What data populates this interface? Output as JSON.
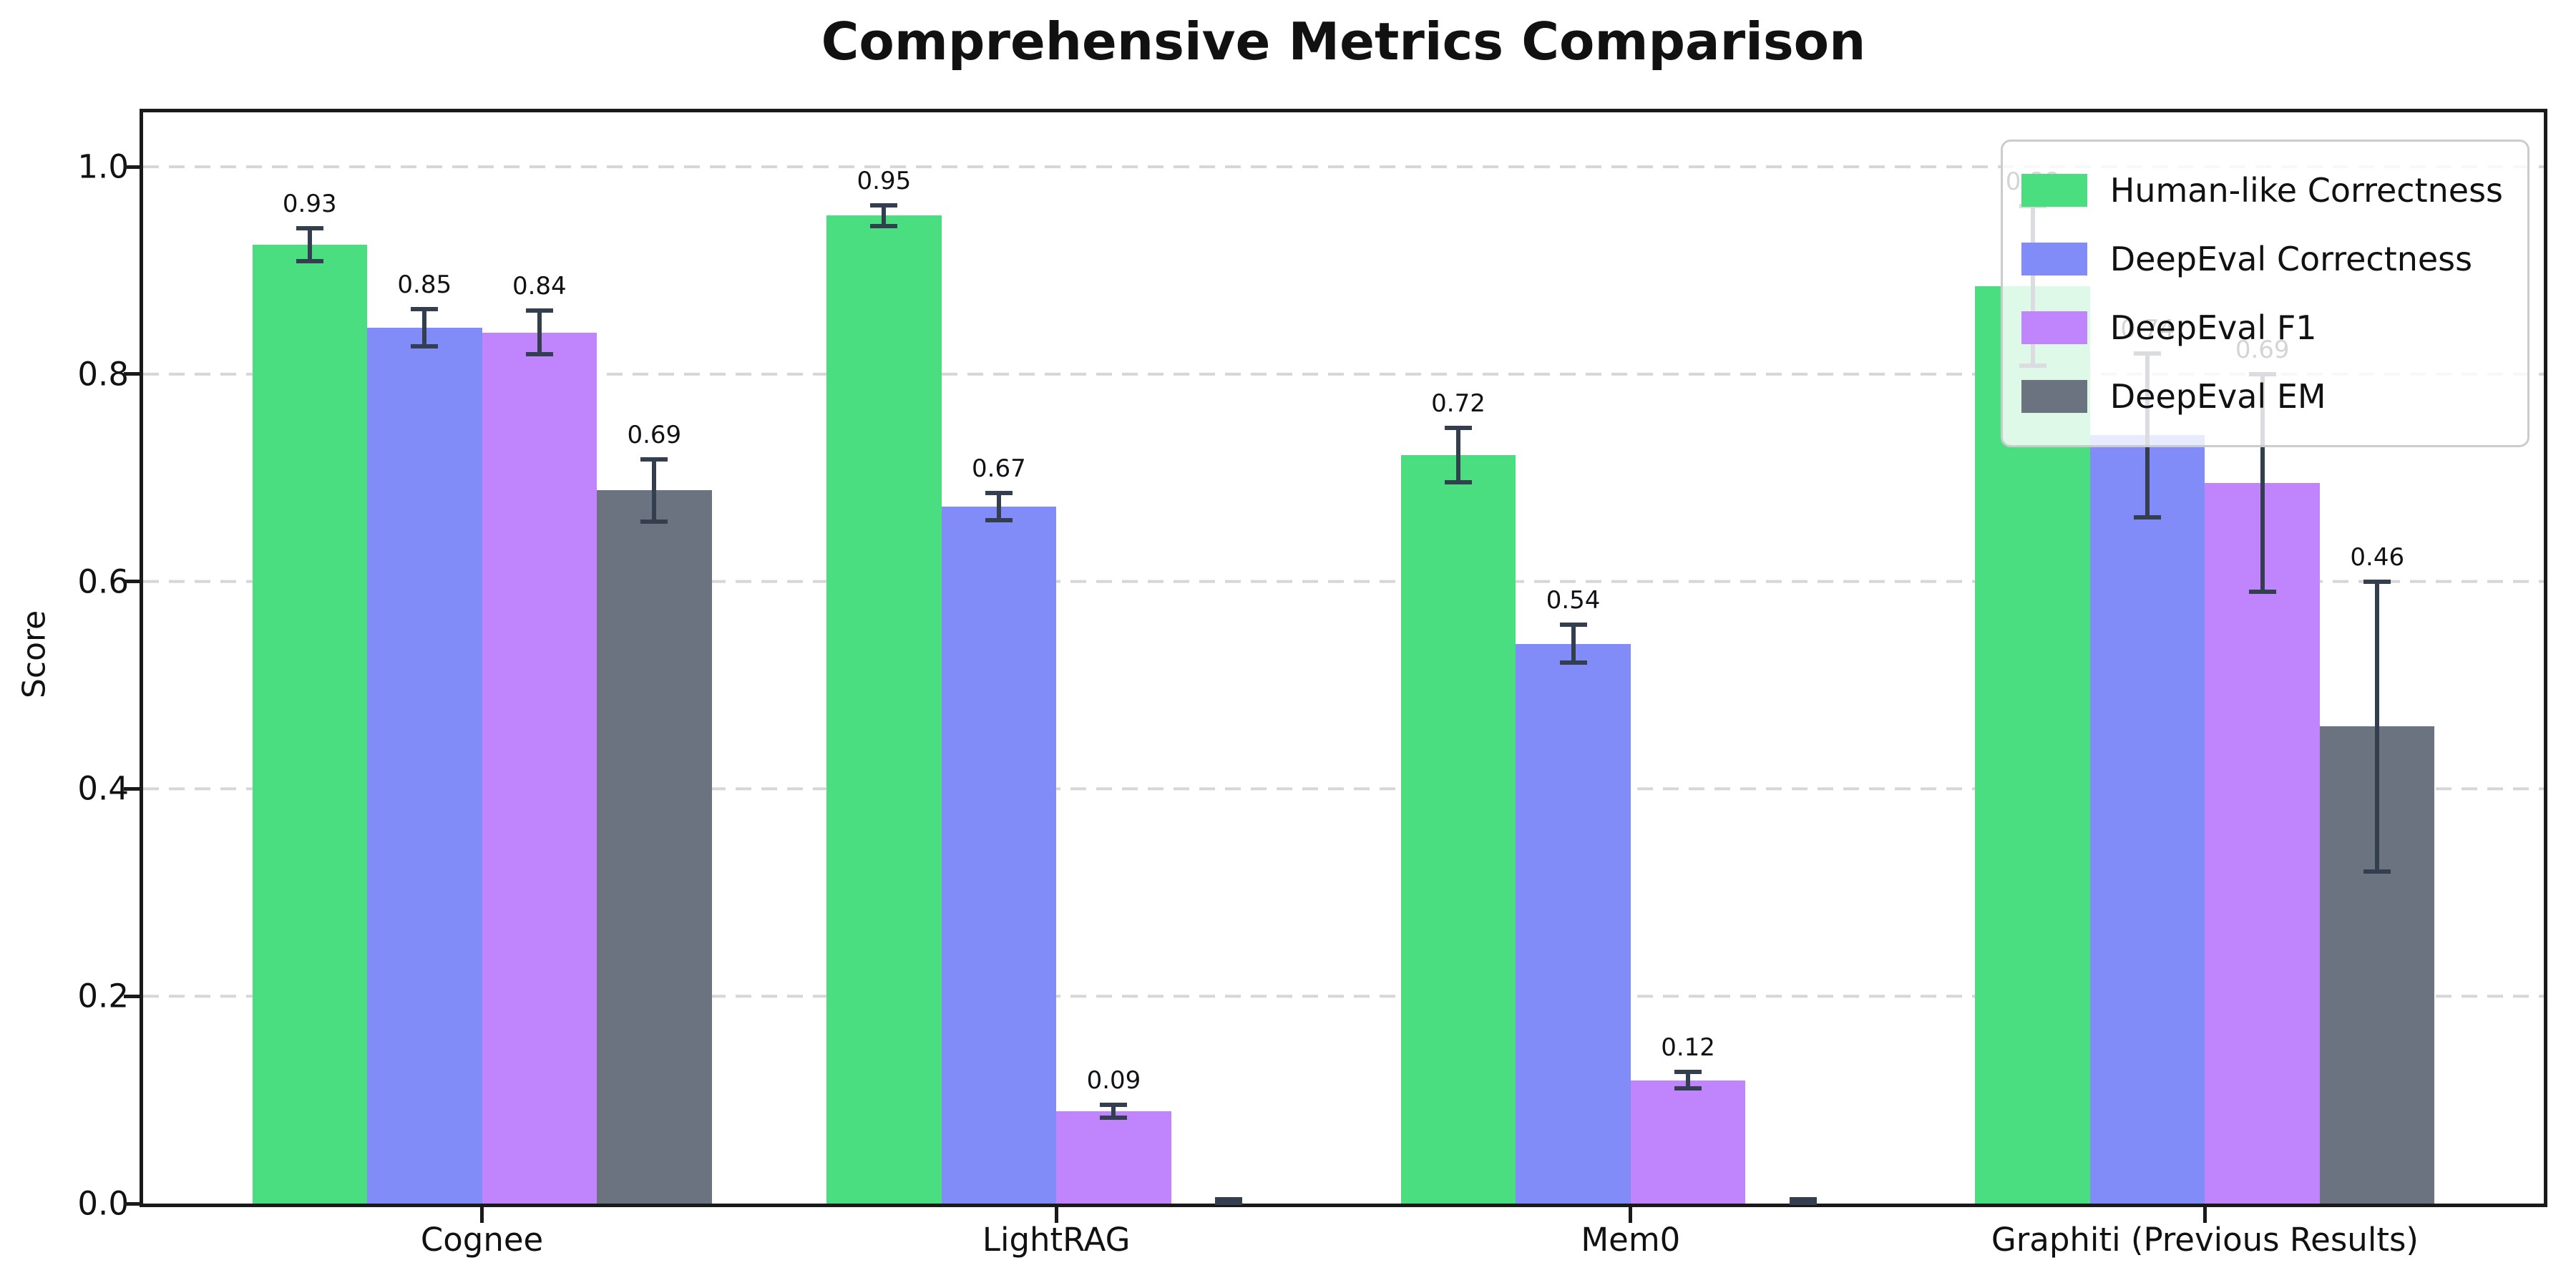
{
  "chart_data": {
    "type": "bar",
    "title": "Comprehensive Metrics Comparison",
    "xlabel": "",
    "ylabel": "Score",
    "categories": [
      "Cognee",
      "LightRAG",
      "Mem0",
      "Graphiti (Previous Results)"
    ],
    "series": [
      {
        "name": "Human-like Correctness",
        "color": "#4ade80",
        "values": [
          0.925,
          0.953,
          0.722,
          0.885
        ],
        "errors": [
          0.016,
          0.01,
          0.026,
          0.077
        ],
        "labels": [
          "0.93",
          "0.95",
          "0.72",
          "0.88"
        ]
      },
      {
        "name": "DeepEval Correctness",
        "color": "#818cf8",
        "values": [
          0.845,
          0.672,
          0.54,
          0.741
        ],
        "errors": [
          0.018,
          0.013,
          0.018,
          0.079
        ],
        "labels": [
          "0.85",
          "0.67",
          "0.54",
          "0.74"
        ]
      },
      {
        "name": "DeepEval F1",
        "color": "#c084fc",
        "values": [
          0.84,
          0.089,
          0.119,
          0.695
        ],
        "errors": [
          0.021,
          0.006,
          0.008,
          0.105
        ],
        "labels": [
          "0.84",
          "0.09",
          "0.12",
          "0.69"
        ]
      },
      {
        "name": "DeepEval EM",
        "color": "#6b7280",
        "values": [
          0.688,
          0.0,
          0.0,
          0.46
        ],
        "errors": [
          0.03,
          0.004,
          0.004,
          0.14
        ],
        "labels": [
          "0.69",
          "",
          "",
          "0.46"
        ]
      }
    ],
    "yticks": [
      "0.0",
      "0.2",
      "0.4",
      "0.6",
      "0.8",
      "1.0"
    ],
    "ytick_values": [
      0.0,
      0.2,
      0.4,
      0.6,
      0.8,
      1.0
    ],
    "ylim": [
      0,
      1.0525
    ],
    "grid": "horizontal-dashed",
    "gridline_color": "#d6d6d6",
    "errorbar_color": "#333e4e",
    "legend_position": "upper right"
  }
}
